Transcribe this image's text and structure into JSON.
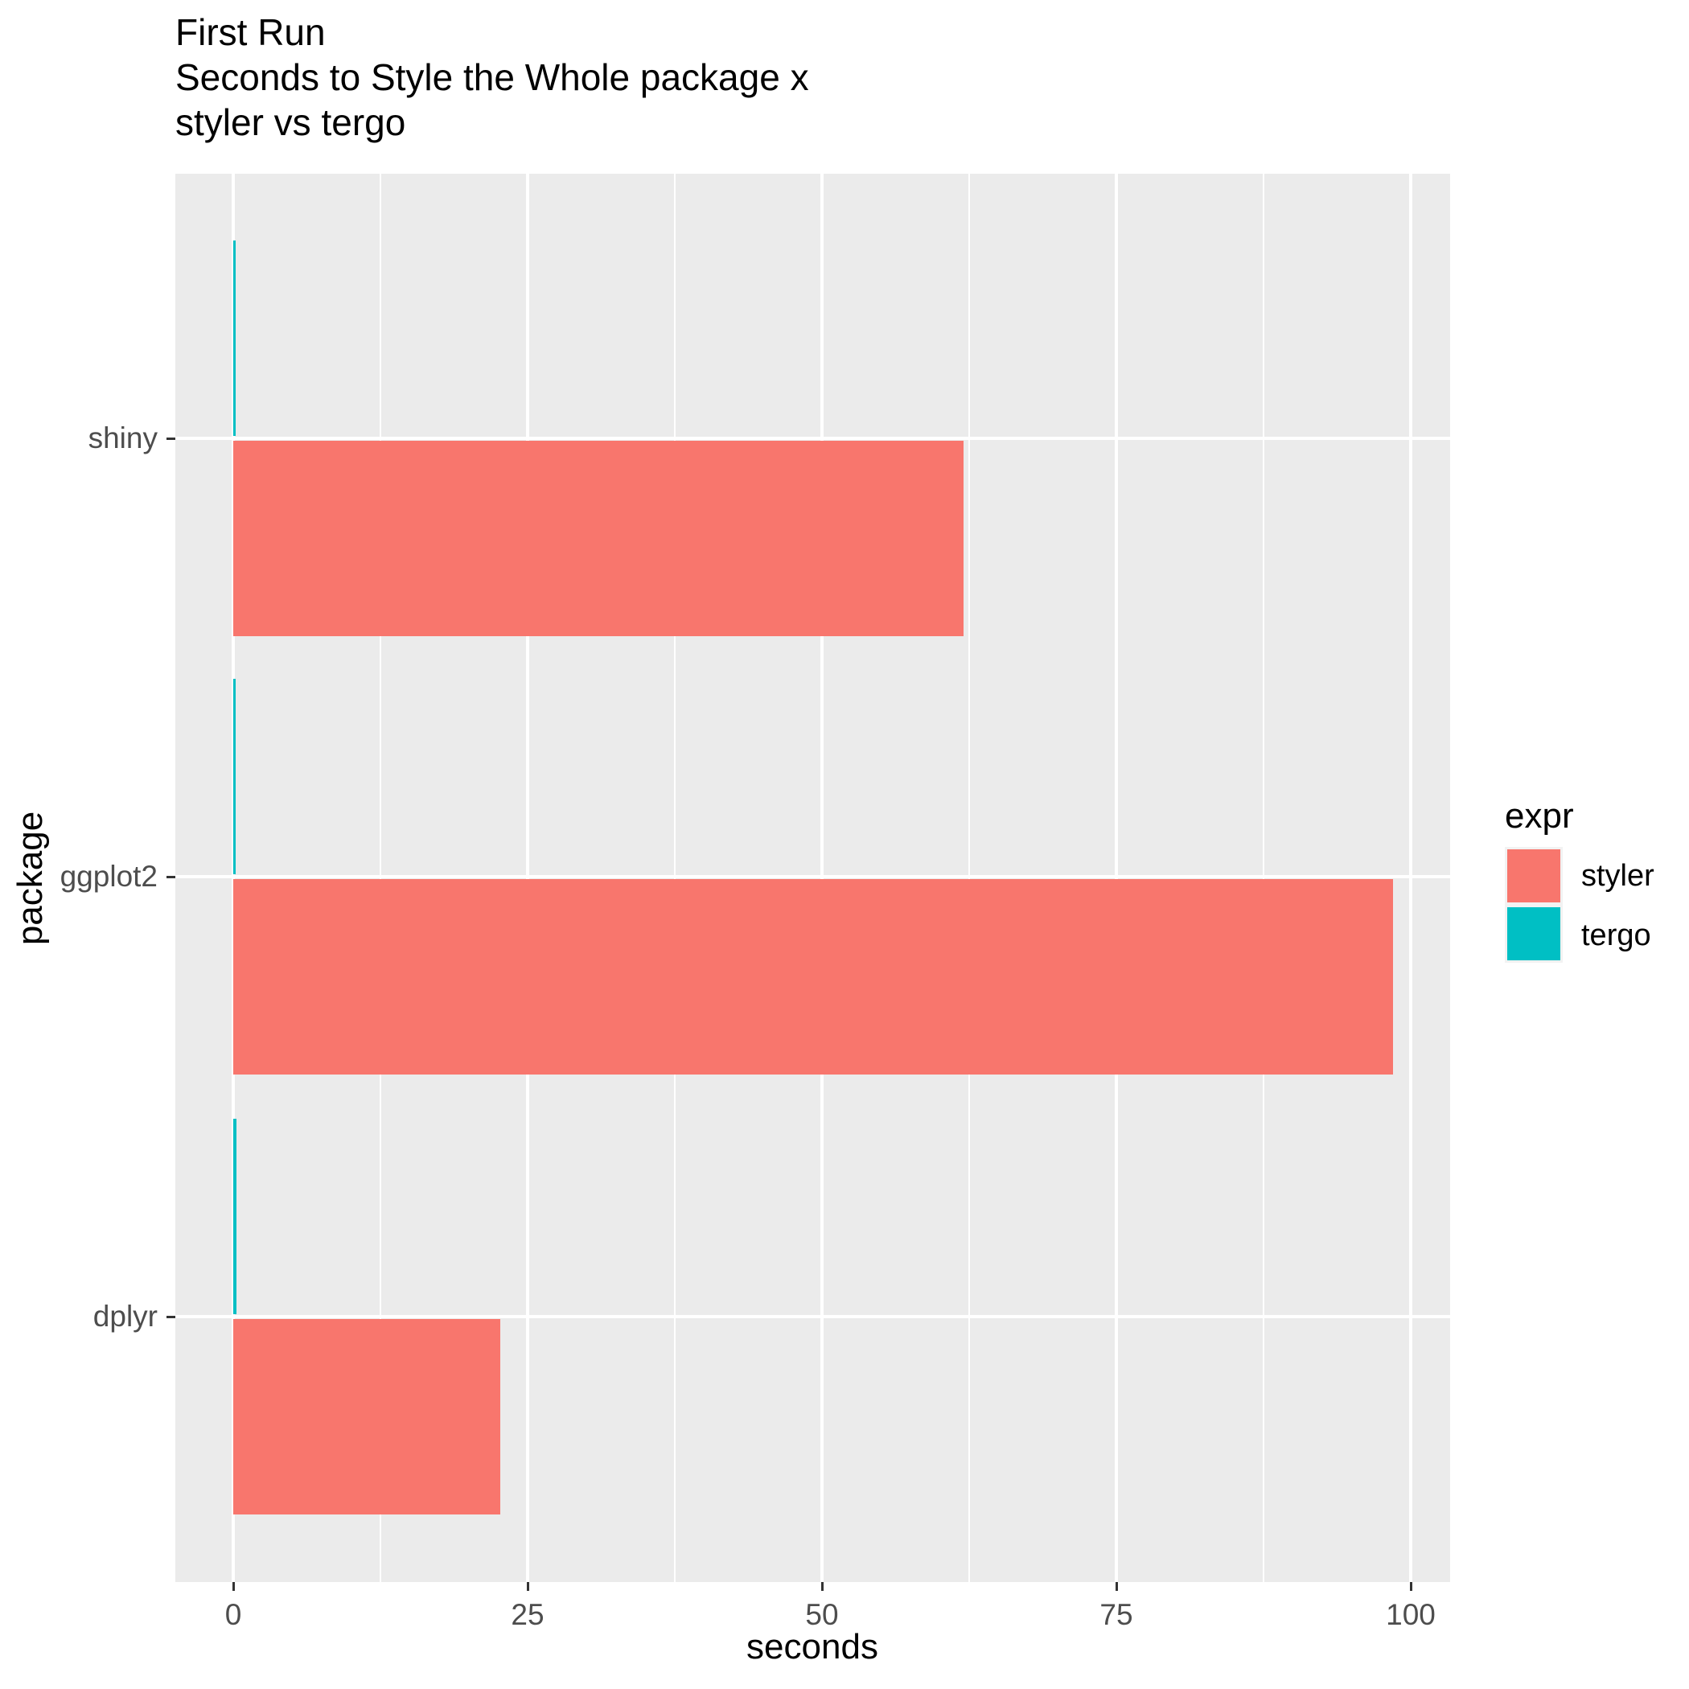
{
  "title": {
    "line1": "First Run",
    "line2": "Seconds to Style the Whole package x",
    "line3": "styler vs tergo"
  },
  "axis_titles": {
    "x": "seconds",
    "y": "package"
  },
  "legend": {
    "title": "expr",
    "position": "right",
    "items": [
      {
        "label": "styler",
        "color": "#F8766D"
      },
      {
        "label": "tergo",
        "color": "#00BFC4"
      }
    ]
  },
  "chart_data": {
    "type": "bar",
    "orientation": "horizontal",
    "title": "First Run — Seconds to Style the Whole package x — styler vs tergo",
    "xlabel": "seconds",
    "ylabel": "package",
    "categories": [
      "shiny",
      "ggplot2",
      "dplyr"
    ],
    "series": [
      {
        "name": "styler",
        "color": "#F8766D",
        "values": [
          62,
          98.5,
          22.7
        ]
      },
      {
        "name": "tergo",
        "color": "#00BFC4",
        "values": [
          0.2,
          0.2,
          0.3
        ]
      }
    ],
    "order_within_group_top_to_bottom": [
      "tergo",
      "styler"
    ],
    "x_ticks": [
      0,
      25,
      50,
      75,
      100
    ],
    "x_minor_ticks": [
      12.5,
      37.5,
      62.5,
      87.5
    ],
    "xlim": [
      -4.9,
      103.4
    ],
    "grid": "on",
    "legend_position": "right"
  },
  "colors": {
    "background": "#FFFFFF",
    "panel_bg": "#EBEBEB",
    "grid": "#FFFFFF",
    "tick_mark": "#333333",
    "tick_label": "#4D4D4D",
    "axis_title": "#000000",
    "title": "#000000",
    "legend_key_bg": "#F2F2F2"
  }
}
